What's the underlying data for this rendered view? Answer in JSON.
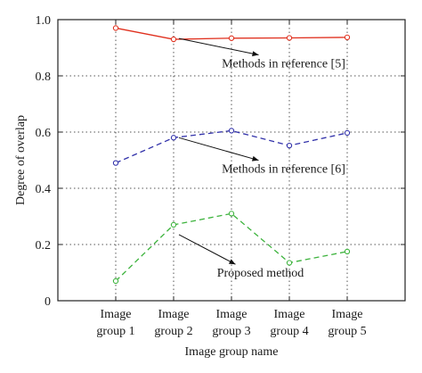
{
  "chart_data": {
    "type": "line",
    "title": "",
    "xlabel": "Image group name",
    "ylabel": "Degree of overlap",
    "categories": [
      [
        "Image",
        "group 1"
      ],
      [
        "Image",
        "group 2"
      ],
      [
        "Image",
        "group 3"
      ],
      [
        "Image",
        "group 4"
      ],
      [
        "Image",
        "group 5"
      ]
    ],
    "ylim": [
      0,
      1.0
    ],
    "yticks": [
      0,
      0.2,
      0.4,
      0.6,
      0.8,
      1.0
    ],
    "ytick_labels": [
      "0",
      "0.2",
      "0.4",
      "0.6",
      "0.8",
      "1.0"
    ],
    "grid": true,
    "series": [
      {
        "key": "ref5",
        "values": [
          0.97,
          0.93,
          0.934,
          0.935,
          0.937
        ],
        "color": "#e0301e",
        "line_style": "solid",
        "marker": "circle"
      },
      {
        "key": "ref6",
        "values": [
          0.49,
          0.58,
          0.605,
          0.552,
          0.597
        ],
        "color": "#3333aa",
        "line_style": "dashed",
        "marker": "circle"
      },
      {
        "key": "proposed",
        "values": [
          0.07,
          0.27,
          0.31,
          0.135,
          0.175
        ],
        "color": "#3db33d",
        "line_style": "dashed",
        "marker": "circle"
      }
    ],
    "annotations": [
      {
        "series": "ref5",
        "text": "Methods in reference [5]",
        "point_index": 1,
        "target_y": 0.933,
        "label_at": [
          2.9,
          0.83
        ]
      },
      {
        "series": "ref6",
        "text": "Methods in reference [6]",
        "point_index": 1,
        "target_y": 0.58,
        "label_at": [
          2.9,
          0.455
        ]
      },
      {
        "series": "proposed",
        "text": "Proposed method",
        "point_index": 1,
        "target_y": 0.235,
        "label_at": [
          2.5,
          0.085
        ]
      }
    ]
  },
  "colors": {
    "axis": "#222222",
    "grid": "#555555",
    "arrow": "#111111"
  }
}
